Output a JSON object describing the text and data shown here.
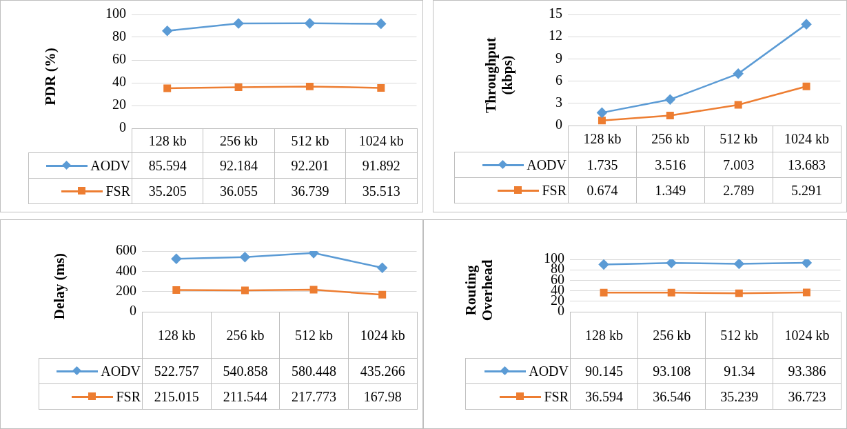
{
  "chart_data": [
    {
      "type": "line",
      "ylabel": "PDR (%)",
      "categories": [
        "128 kb",
        "256 kb",
        "512 kb",
        "1024 kb"
      ],
      "ylim": [
        0,
        100
      ],
      "yticks": [
        0,
        20,
        40,
        60,
        80,
        100
      ],
      "grid": "y",
      "legend": "bottom left",
      "data_labels": true,
      "series": [
        {
          "name": "AODV",
          "color": "#5b9bd5",
          "marker": "diamond",
          "values": [
            85.594,
            92.184,
            92.201,
            91.892
          ]
        },
        {
          "name": "FSR",
          "color": "#ed7d31",
          "marker": "square",
          "values": [
            35.205,
            36.055,
            36.739,
            35.513
          ]
        }
      ]
    },
    {
      "type": "line",
      "ylabel": "Throughput (kbps)",
      "categories": [
        "128 kb",
        "256 kb",
        "512 kb",
        "1024 kb"
      ],
      "ylim": [
        0,
        15
      ],
      "yticks": [
        0,
        3,
        6,
        9,
        12,
        15
      ],
      "grid": "y",
      "legend": "bottom left",
      "data_labels": true,
      "series": [
        {
          "name": "AODV",
          "color": "#5b9bd5",
          "marker": "diamond",
          "values": [
            1.735,
            3.516,
            7.003,
            13.683
          ]
        },
        {
          "name": "FSR",
          "color": "#ed7d31",
          "marker": "square",
          "values": [
            0.674,
            1.349,
            2.789,
            5.291
          ]
        }
      ]
    },
    {
      "type": "line",
      "ylabel": "Delay (ms)",
      "categories": [
        "128 kb",
        "256 kb",
        "512 kb",
        "1024 kb"
      ],
      "ylim": [
        0,
        600
      ],
      "yticks": [
        0,
        200,
        400,
        600
      ],
      "grid": "y",
      "legend": "bottom left",
      "data_labels": true,
      "series": [
        {
          "name": "AODV",
          "color": "#5b9bd5",
          "marker": "diamond",
          "values": [
            522.757,
            540.858,
            580.448,
            435.266
          ]
        },
        {
          "name": "FSR",
          "color": "#ed7d31",
          "marker": "square",
          "values": [
            215.015,
            211.544,
            217.773,
            167.98
          ]
        }
      ]
    },
    {
      "type": "line",
      "ylabel": "Routing Overhead",
      "categories": [
        "128 kb",
        "256 kb",
        "512 kb",
        "1024 kb"
      ],
      "ylim": [
        0,
        100
      ],
      "yticks": [
        0,
        20,
        40,
        60,
        80,
        100
      ],
      "grid": "y",
      "legend": "bottom left",
      "data_labels": true,
      "series": [
        {
          "name": "AODV",
          "color": "#5b9bd5",
          "marker": "diamond",
          "values": [
            90.145,
            93.108,
            91.34,
            93.386
          ]
        },
        {
          "name": "FSR",
          "color": "#ed7d31",
          "marker": "square",
          "values": [
            36.594,
            36.546,
            35.239,
            36.723
          ]
        }
      ]
    }
  ]
}
